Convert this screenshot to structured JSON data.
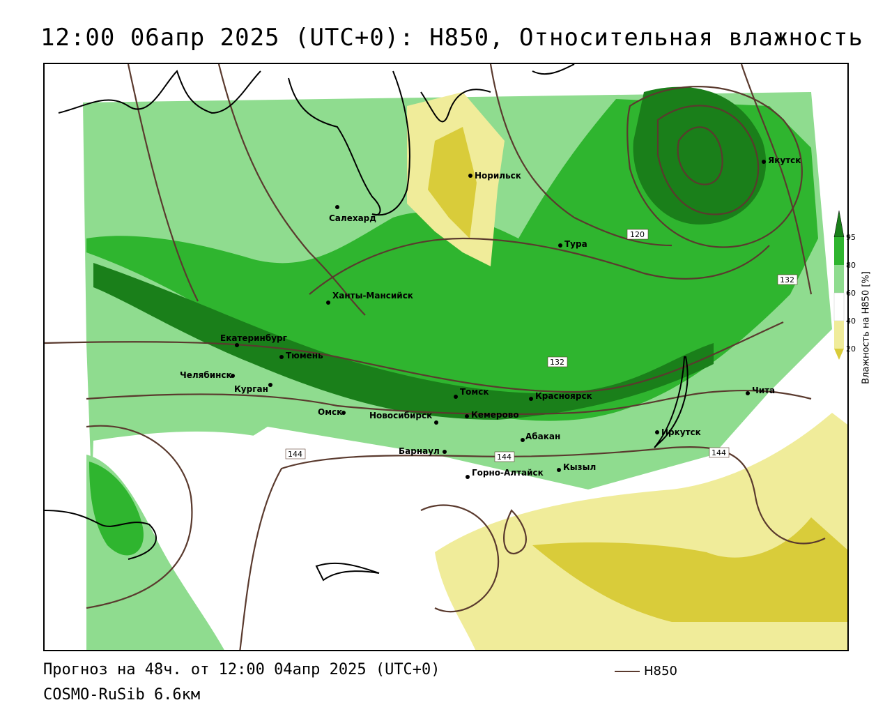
{
  "title": "12:00 06апр 2025 (UTC+0): H850, Относительная влажность",
  "footer": {
    "forecast": "Прогноз на 48ч. от 12:00 04апр 2025 (UTC+0)",
    "model": "COSMO-RuSib 6.6км",
    "line_legend": "H850"
  },
  "legend": {
    "title": "Влажность на H850 [%]",
    "ticks": [
      "95",
      "80",
      "60",
      "40",
      "20"
    ],
    "colors": {
      "95": "#1a7f1a",
      "80": "#2fb52f",
      "60": "#8fdc8f",
      "40": "#ffffff",
      "20": "#f0ec9a",
      "low": "#d9cc3a"
    },
    "contour_color": "#5a3a2e"
  },
  "cities": [
    {
      "name": "Норильск"
    },
    {
      "name": "Якутск"
    },
    {
      "name": "Салехард"
    },
    {
      "name": "Тура"
    },
    {
      "name": "Ханты-Мансийск"
    },
    {
      "name": "Екатеринбург"
    },
    {
      "name": "Тюмень"
    },
    {
      "name": "Челябинск"
    },
    {
      "name": "Курган"
    },
    {
      "name": "Омск"
    },
    {
      "name": "Новосибирск"
    },
    {
      "name": "Томск"
    },
    {
      "name": "Кемерово"
    },
    {
      "name": "Красноярск"
    },
    {
      "name": "Барнаул"
    },
    {
      "name": "Абакан"
    },
    {
      "name": "Горно-Алтайск"
    },
    {
      "name": "Кызыл"
    },
    {
      "name": "Иркутск"
    },
    {
      "name": "Чита"
    }
  ],
  "isohypse_labels": [
    "120",
    "132",
    "132",
    "144",
    "144",
    "144"
  ]
}
